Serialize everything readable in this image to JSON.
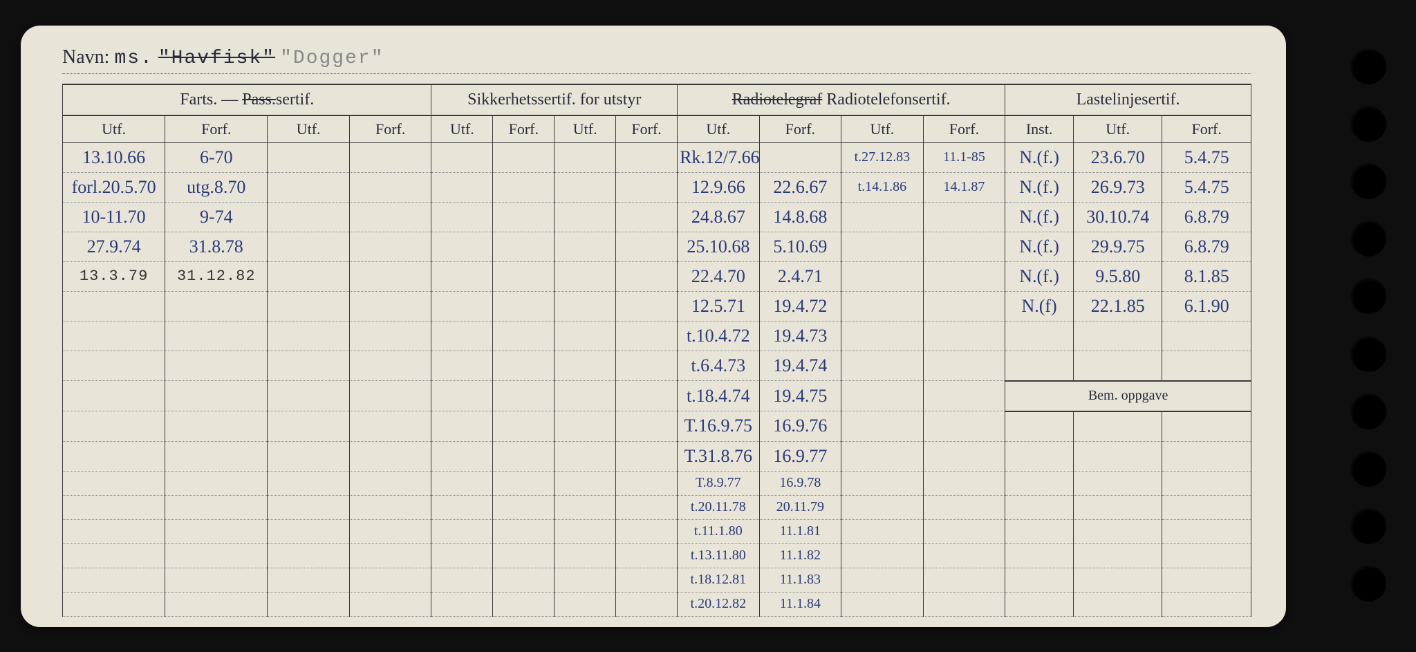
{
  "title": {
    "label": "Navn:",
    "prefix": "ms.",
    "name_struck": "\"Havfisk\"",
    "name_new": "\"Dogger\""
  },
  "headers": {
    "farts": "Farts. — Pass.sertif.",
    "farts_plain": "Farts. —",
    "farts_struck": "Pass.",
    "farts_suffix": "sertif.",
    "sikker": "Sikkerhetssertif. for utstyr",
    "radio_struck": "Radiotelegraf",
    "radio_plain": "Radiotelefonsertif.",
    "laste": "Lastelinjesertif.",
    "utf": "Utf.",
    "forf": "Forf.",
    "inst": "Inst.",
    "bem": "Bem. oppgave"
  },
  "rows": [
    {
      "f_utf": "13.10.66",
      "f_forf": "6-70",
      "r1_utf": "Rk.12/7.66",
      "r1_forf": "",
      "r2_utf": "t.27.12.83",
      "r2_forf": "11.1-85",
      "l_inst": "N.(f.)",
      "l_utf": "23.6.70",
      "l_forf": "5.4.75"
    },
    {
      "f_utf": "forl.20.5.70",
      "f_forf": "utg.8.70",
      "r1_utf": "12.9.66",
      "r1_forf": "22.6.67",
      "r2_utf": "t.14.1.86",
      "r2_forf": "14.1.87",
      "l_inst": "N.(f.)",
      "l_utf": "26.9.73",
      "l_forf": "5.4.75"
    },
    {
      "f_utf": "10-11.70",
      "f_forf": "9-74",
      "r1_utf": "24.8.67",
      "r1_forf": "14.8.68",
      "r2_utf": "",
      "r2_forf": "",
      "l_inst": "N.(f.)",
      "l_utf": "30.10.74",
      "l_forf": "6.8.79"
    },
    {
      "f_utf": "27.9.74",
      "f_forf": "31.8.78",
      "r1_utf": "25.10.68",
      "r1_forf": "5.10.69",
      "r2_utf": "",
      "r2_forf": "",
      "l_inst": "N.(f.)",
      "l_utf": "29.9.75",
      "l_forf": "6.8.79"
    },
    {
      "f_utf": "13.3.79",
      "f_forf": "31.12.82",
      "r1_utf": "22.4.70",
      "r1_forf": "2.4.71",
      "r2_utf": "",
      "r2_forf": "",
      "l_inst": "N.(f.)",
      "l_utf": "9.5.80",
      "l_forf": "8.1.85",
      "typed": true
    },
    {
      "f_utf": "",
      "f_forf": "",
      "r1_utf": "12.5.71",
      "r1_forf": "19.4.72",
      "r2_utf": "",
      "r2_forf": "",
      "l_inst": "N.(f)",
      "l_utf": "22.1.85",
      "l_forf": "6.1.90"
    },
    {
      "f_utf": "",
      "f_forf": "",
      "r1_utf": "t.10.4.72",
      "r1_forf": "19.4.73",
      "r2_utf": "",
      "r2_forf": "",
      "l_inst": "",
      "l_utf": "",
      "l_forf": ""
    },
    {
      "f_utf": "",
      "f_forf": "",
      "r1_utf": "t.6.4.73",
      "r1_forf": "19.4.74",
      "r2_utf": "",
      "r2_forf": "",
      "l_inst": "",
      "l_utf": "",
      "l_forf": ""
    },
    {
      "f_utf": "",
      "f_forf": "",
      "r1_utf": "t.18.4.74",
      "r1_forf": "19.4.75",
      "r2_utf": "",
      "r2_forf": "",
      "l_inst": "",
      "l_utf": "",
      "l_forf": "",
      "bem": true
    },
    {
      "f_utf": "",
      "f_forf": "",
      "r1_utf": "T.16.9.75",
      "r1_forf": "16.9.76",
      "r2_utf": "",
      "r2_forf": "",
      "l_inst": "",
      "l_utf": "",
      "l_forf": ""
    },
    {
      "f_utf": "",
      "f_forf": "",
      "r1_utf": "T.31.8.76",
      "r1_forf": "16.9.77",
      "r2_utf": "",
      "r2_forf": "",
      "l_inst": "",
      "l_utf": "",
      "l_forf": ""
    },
    {
      "f_utf": "",
      "f_forf": "",
      "r1_utf": "T.8.9.77",
      "r1_forf": "16.9.78",
      "r2_utf": "",
      "r2_forf": "",
      "l_inst": "",
      "l_utf": "",
      "l_forf": "",
      "tight": true
    },
    {
      "f_utf": "",
      "f_forf": "",
      "r1_utf": "t.20.11.78",
      "r1_forf": "20.11.79",
      "r2_utf": "",
      "r2_forf": "",
      "l_inst": "",
      "l_utf": "",
      "l_forf": "",
      "tight": true
    },
    {
      "f_utf": "",
      "f_forf": "",
      "r1_utf": "t.11.1.80",
      "r1_forf": "11.1.81",
      "r2_utf": "",
      "r2_forf": "",
      "l_inst": "",
      "l_utf": "",
      "l_forf": "",
      "tight": true
    },
    {
      "f_utf": "",
      "f_forf": "",
      "r1_utf": "t.13.11.80",
      "r1_forf": "11.1.82",
      "r2_utf": "",
      "r2_forf": "",
      "l_inst": "",
      "l_utf": "",
      "l_forf": "",
      "tight": true
    },
    {
      "f_utf": "",
      "f_forf": "",
      "r1_utf": "t.18.12.81",
      "r1_forf": "11.1.83",
      "r2_utf": "",
      "r2_forf": "",
      "l_inst": "",
      "l_utf": "",
      "l_forf": "",
      "tight": true
    },
    {
      "f_utf": "",
      "f_forf": "",
      "r1_utf": "t.20.12.82",
      "r1_forf": "11.1.84",
      "r2_utf": "",
      "r2_forf": "",
      "l_inst": "",
      "l_utf": "",
      "l_forf": "",
      "tight": true
    }
  ],
  "colors": {
    "paper": "#e8e4d8",
    "ink_printed": "#2a2a3a",
    "ink_handwritten": "#2a3a7a",
    "border": "#3a3a3a",
    "dotted": "#888888",
    "background": "#0f0f0f"
  }
}
